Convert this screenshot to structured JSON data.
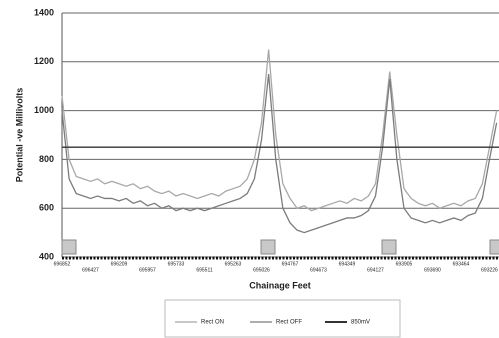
{
  "chart_data": {
    "type": "line",
    "y_label": "Potential -ve Millivolts",
    "x_label": "Chainage Feet",
    "categories": [
      "696852",
      null,
      null,
      null,
      "696427",
      null,
      null,
      null,
      "696209",
      null,
      null,
      null,
      "695957",
      null,
      null,
      null,
      "695733",
      null,
      null,
      null,
      "695511",
      null,
      null,
      null,
      "695263",
      null,
      null,
      null,
      "695026",
      null,
      null,
      null,
      "694767",
      null,
      null,
      null,
      "694673",
      null,
      null,
      null,
      "694349",
      null,
      null,
      null,
      "694127",
      null,
      null,
      null,
      "693905",
      null,
      null,
      null,
      "693690",
      null,
      null,
      null,
      "693464",
      null,
      null,
      null,
      "693226",
      null
    ],
    "series": [
      {
        "name": "Rect ON",
        "color": "#a8a8a8",
        "values": [
          1060,
          800,
          730,
          720,
          710,
          720,
          700,
          710,
          700,
          690,
          700,
          680,
          690,
          670,
          660,
          670,
          650,
          660,
          650,
          640,
          650,
          660,
          650,
          670,
          680,
          690,
          720,
          800,
          950,
          1250,
          900,
          700,
          640,
          600,
          610,
          590,
          600,
          610,
          620,
          630,
          620,
          640,
          630,
          650,
          700,
          900,
          1160,
          900,
          680,
          640,
          620,
          610,
          620,
          600,
          610,
          620,
          610,
          630,
          640,
          700,
          850,
          1000
        ]
      },
      {
        "name": "Rect OFF",
        "color": "#7c7c7c",
        "values": [
          1000,
          720,
          660,
          650,
          640,
          650,
          640,
          640,
          630,
          640,
          620,
          630,
          610,
          620,
          600,
          610,
          590,
          600,
          590,
          600,
          590,
          600,
          610,
          620,
          630,
          640,
          660,
          720,
          880,
          1150,
          800,
          600,
          540,
          510,
          500,
          510,
          520,
          530,
          540,
          550,
          560,
          560,
          570,
          590,
          650,
          850,
          1130,
          800,
          600,
          560,
          550,
          540,
          550,
          540,
          550,
          560,
          550,
          570,
          580,
          640,
          800,
          950
        ]
      }
    ],
    "reference_lines": [
      {
        "name": "850mV",
        "value": 850,
        "color": "#333333"
      }
    ],
    "ylim": [
      400,
      1400
    ],
    "yticks": [
      400,
      600,
      800,
      1000,
      1200,
      1400
    ],
    "grid": true
  }
}
